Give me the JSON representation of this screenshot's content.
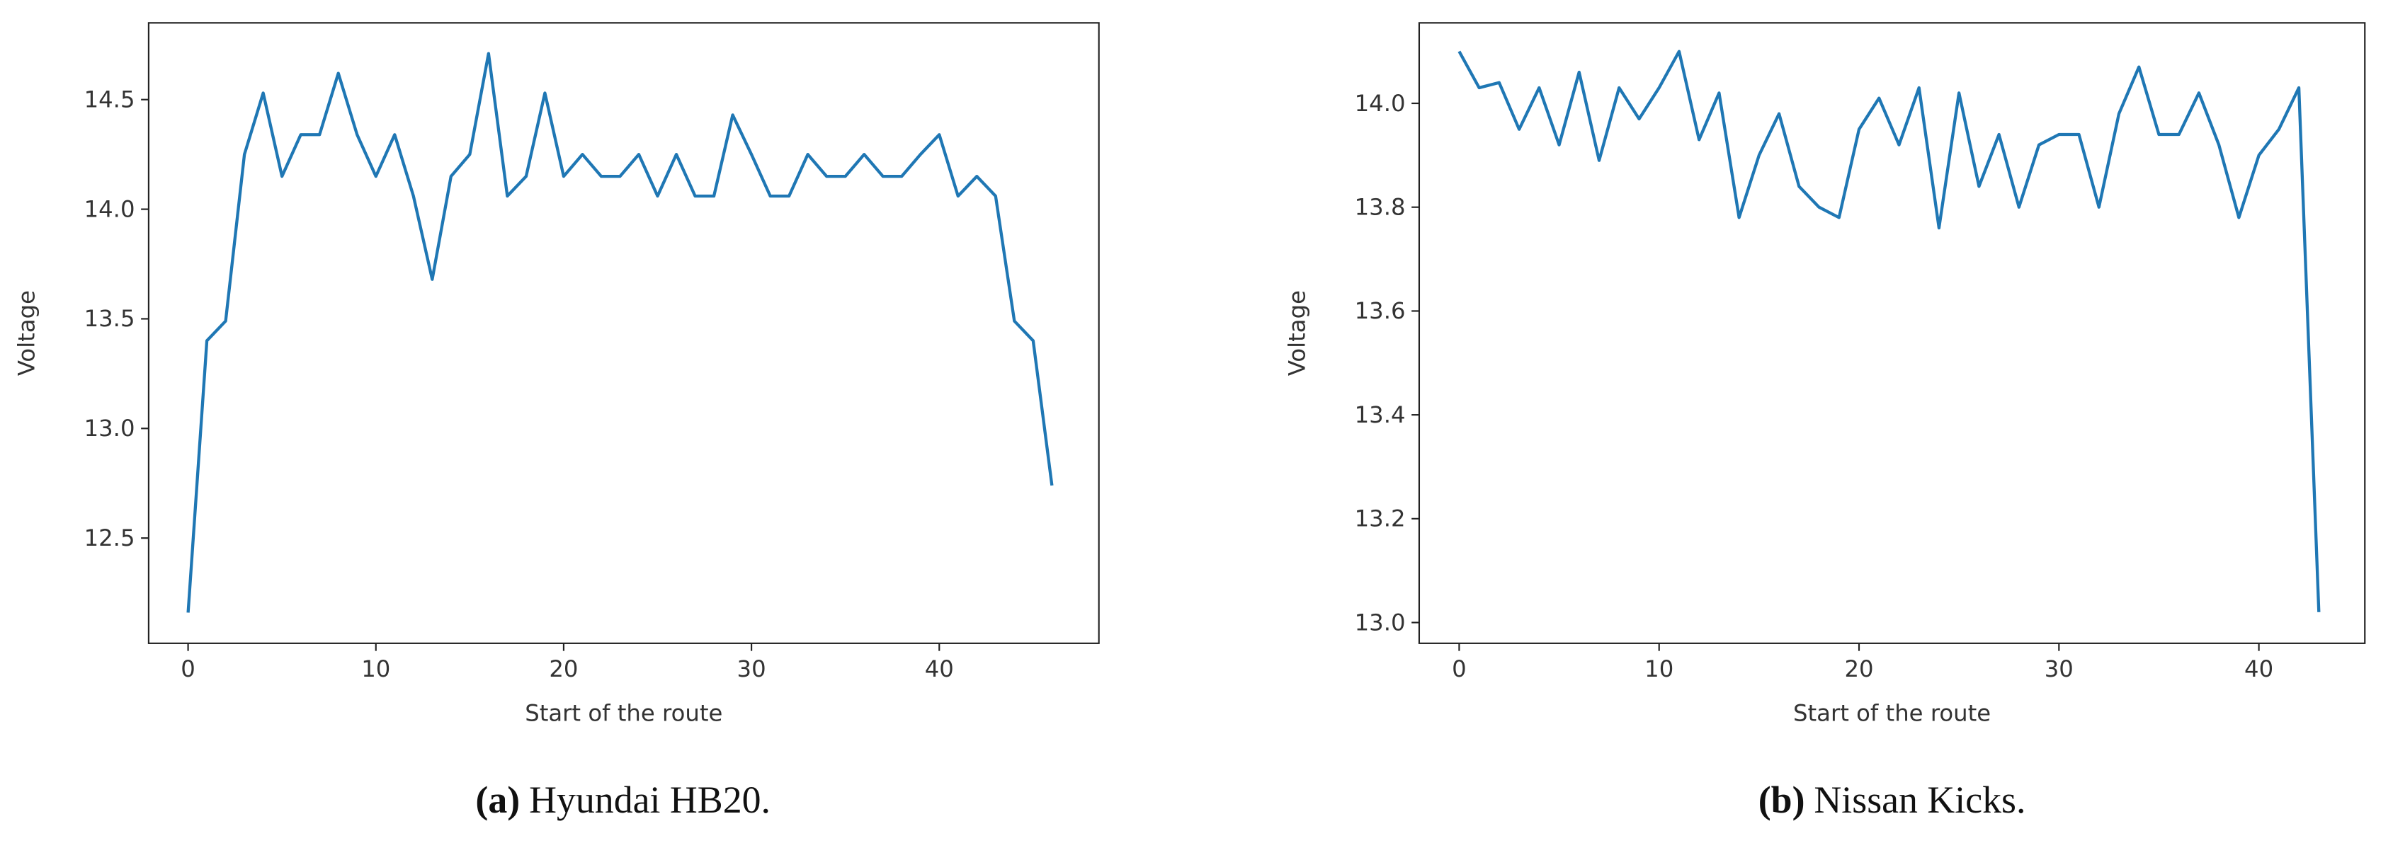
{
  "chart_data": [
    {
      "type": "line",
      "caption_label": "(a)",
      "caption": "Hyundai HB20.",
      "xlabel": "Start of the route",
      "ylabel": "Voltage",
      "x": [
        0,
        1,
        2,
        3,
        4,
        5,
        6,
        7,
        8,
        9,
        10,
        11,
        12,
        13,
        14,
        15,
        16,
        17,
        18,
        19,
        20,
        21,
        22,
        23,
        24,
        25,
        26,
        27,
        28,
        29,
        30,
        31,
        32,
        33,
        34,
        35,
        36,
        37,
        38,
        39,
        40,
        41,
        42,
        43,
        44,
        45,
        46
      ],
      "series": [
        {
          "color": "#1f77b4",
          "values": [
            12.16,
            13.4,
            13.49,
            14.25,
            14.53,
            14.15,
            14.34,
            14.34,
            14.62,
            14.34,
            14.15,
            14.34,
            14.06,
            13.68,
            14.15,
            14.25,
            14.71,
            14.06,
            14.15,
            14.53,
            14.15,
            14.25,
            14.15,
            14.15,
            14.25,
            14.06,
            14.25,
            14.06,
            14.06,
            14.43,
            14.25,
            14.06,
            14.06,
            14.25,
            14.15,
            14.15,
            14.25,
            14.15,
            14.15,
            14.25,
            14.34,
            14.06,
            14.15,
            14.06,
            13.49,
            13.4,
            12.74
          ]
        }
      ],
      "xlim": [
        -2.1,
        48.5
      ],
      "xticks": [
        0,
        10,
        20,
        30,
        40
      ],
      "ylim": [
        12.02,
        14.85
      ],
      "yticks": [
        12.5,
        {
          "value": 13,
          "label": "13.0"
        },
        13.5,
        {
          "value": 14,
          "label": "14.0"
        },
        14.5
      ]
    },
    {
      "type": "line",
      "caption_label": "(b)",
      "caption": "Nissan Kicks.",
      "xlabel": "Start of the route",
      "ylabel": "Voltage",
      "x": [
        0,
        1,
        2,
        3,
        4,
        5,
        6,
        7,
        8,
        9,
        10,
        11,
        12,
        13,
        14,
        15,
        16,
        17,
        18,
        19,
        20,
        21,
        22,
        23,
        24,
        25,
        26,
        27,
        28,
        29,
        30,
        31,
        32,
        33,
        34,
        35,
        36,
        37,
        38,
        39,
        40,
        41,
        42,
        43
      ],
      "series": [
        {
          "color": "#1f77b4",
          "values": [
            14.1,
            14.03,
            14.04,
            13.95,
            14.03,
            13.92,
            14.06,
            13.89,
            14.03,
            13.97,
            14.03,
            14.1,
            13.93,
            14.02,
            13.78,
            13.9,
            13.98,
            13.84,
            13.8,
            13.78,
            13.95,
            14.01,
            13.92,
            14.03,
            13.76,
            14.02,
            13.84,
            13.94,
            13.8,
            13.92,
            13.94,
            13.94,
            13.8,
            13.98,
            14.07,
            13.94,
            13.94,
            14.02,
            13.92,
            13.78,
            13.9,
            13.95,
            14.03,
            13.02
          ]
        }
      ],
      "xlim": [
        -2.0,
        45.3
      ],
      "xticks": [
        0,
        10,
        20,
        30,
        40
      ],
      "ylim": [
        12.96,
        14.155
      ],
      "yticks": [
        {
          "value": 13,
          "label": "13.0"
        },
        13.2,
        13.4,
        13.6,
        13.8,
        {
          "value": 14,
          "label": "14.0"
        }
      ]
    }
  ]
}
